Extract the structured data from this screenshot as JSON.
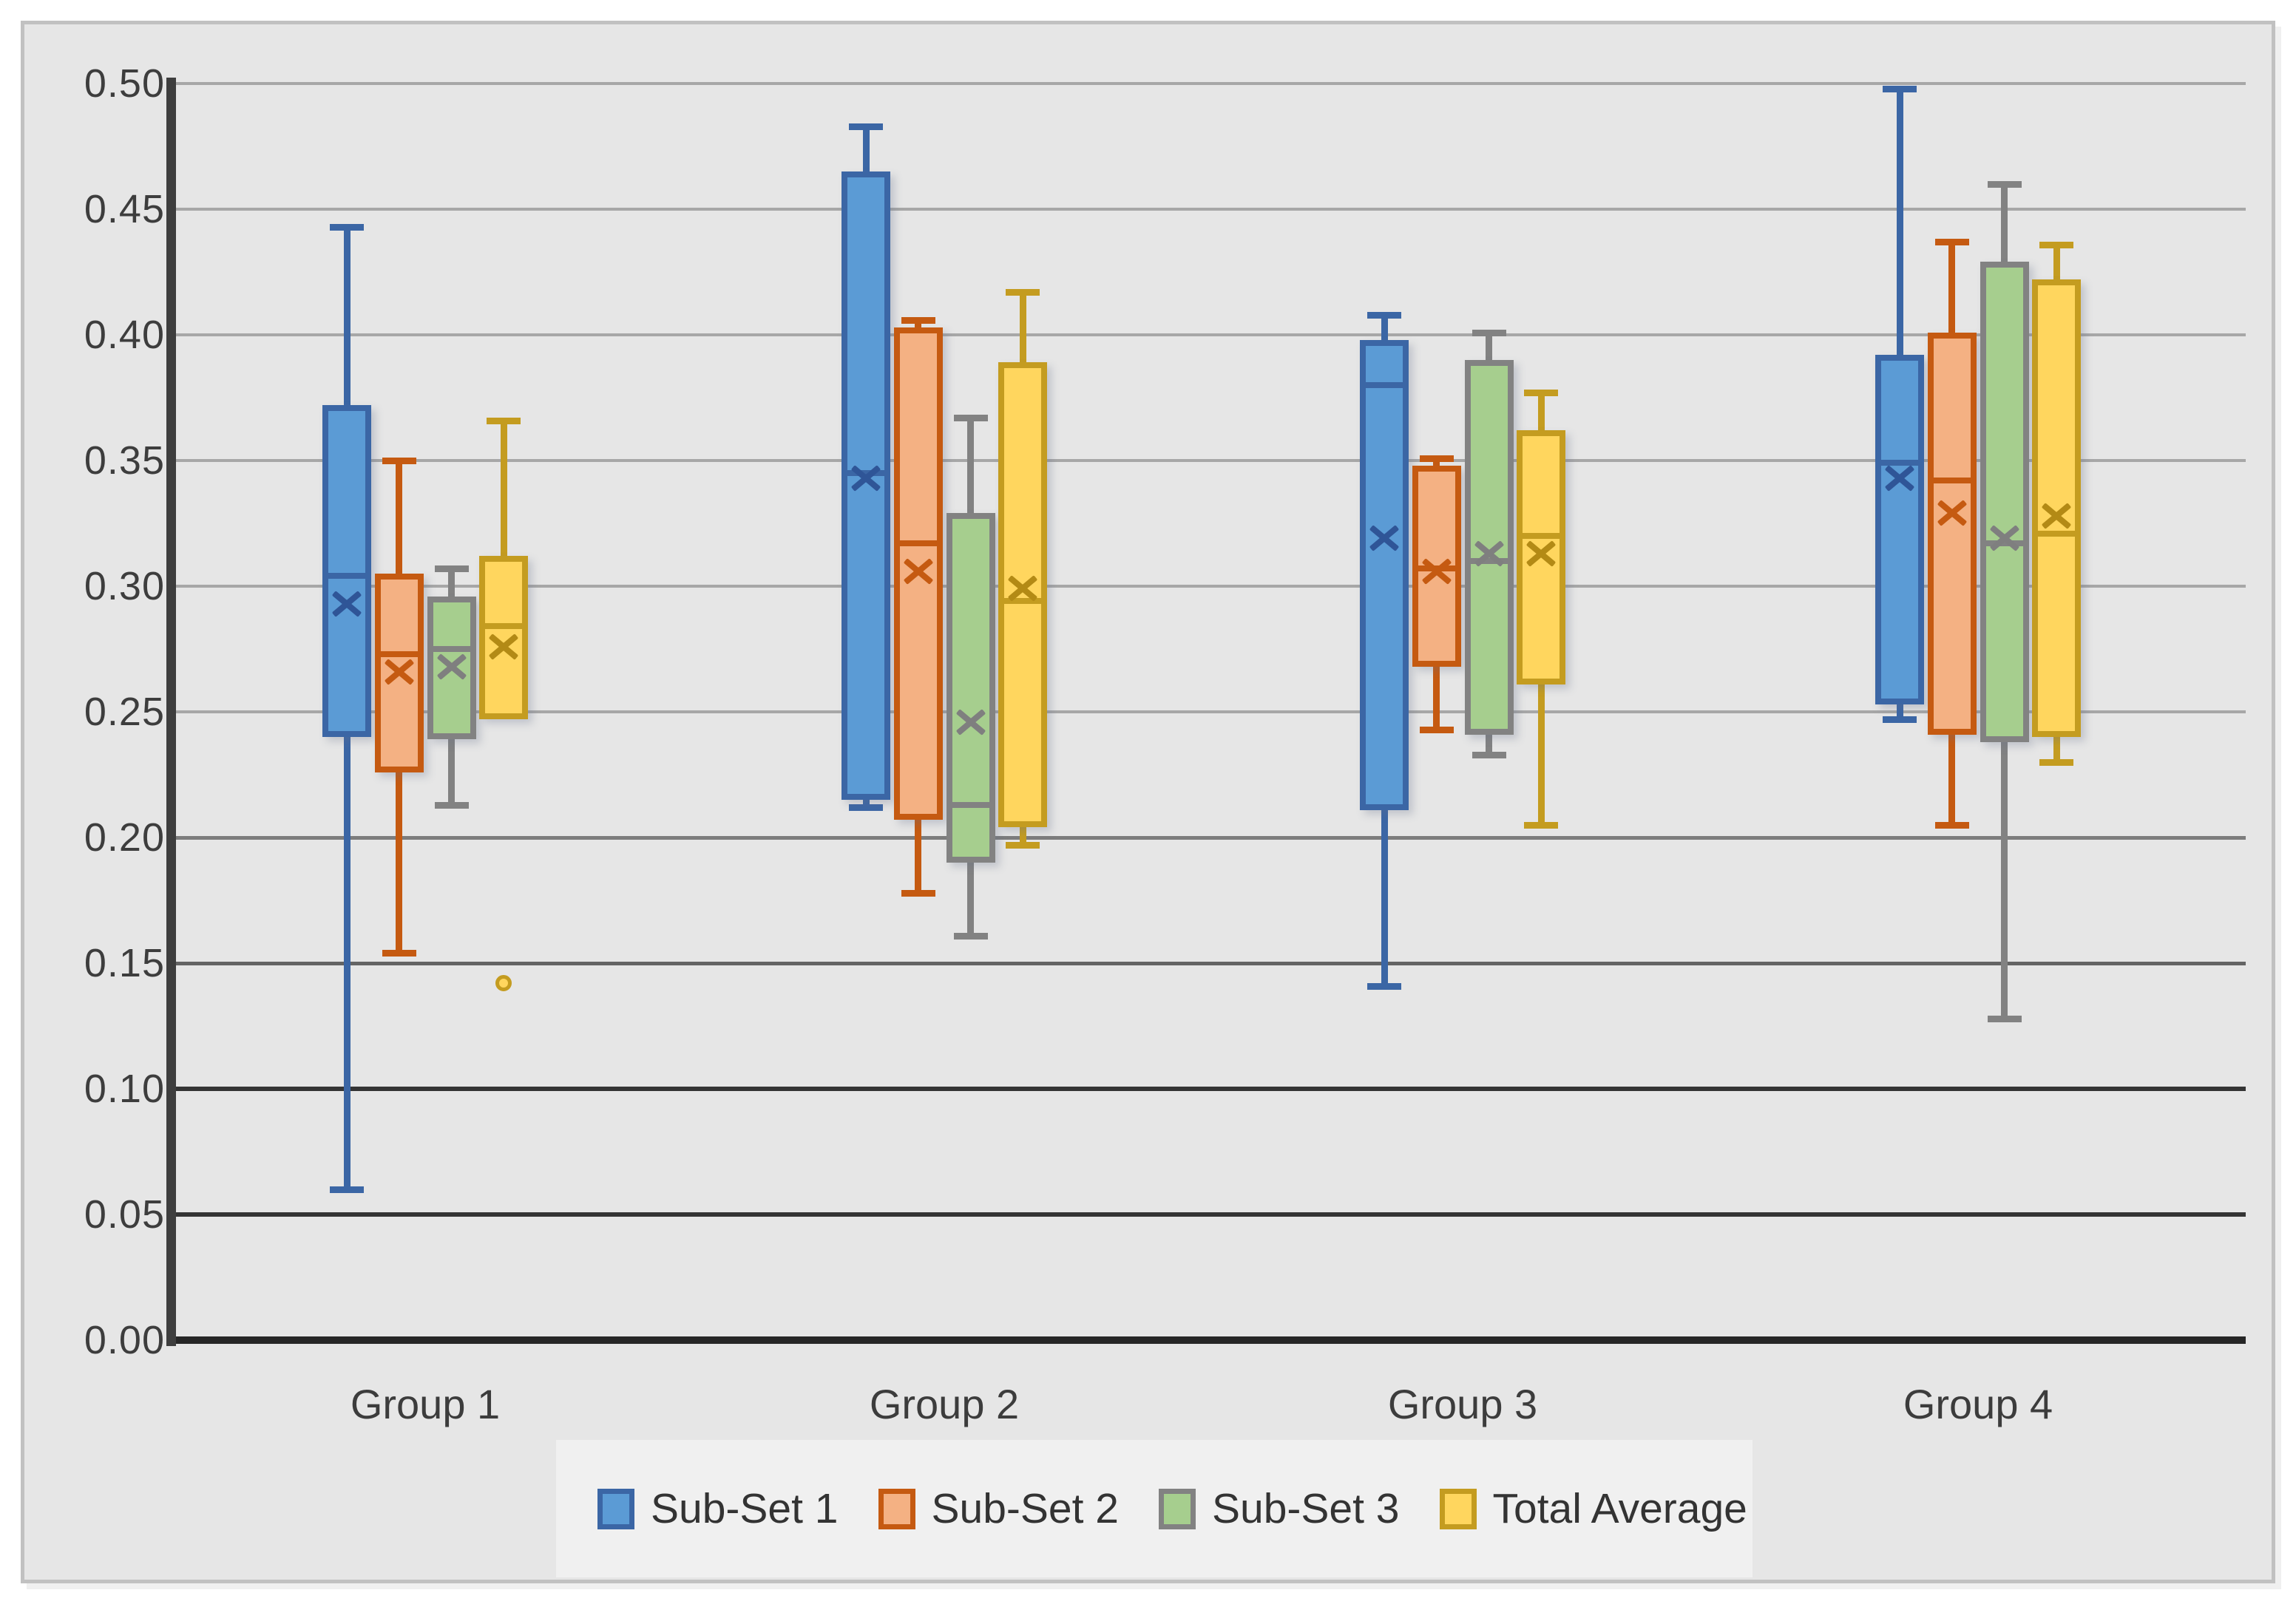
{
  "chart_data": {
    "type": "boxplot",
    "title": "",
    "categories": [
      "Group 1",
      "Group 2",
      "Group 3",
      "Group 4"
    ],
    "y_axis": {
      "min": 0.0,
      "max": 0.5,
      "step": 0.05,
      "ticks": [
        {
          "value": 0.5,
          "label": "0.50"
        },
        {
          "value": 0.45,
          "label": "0.45"
        },
        {
          "value": 0.4,
          "label": "0.40"
        },
        {
          "value": 0.35,
          "label": "0.35"
        },
        {
          "value": 0.3,
          "label": "0.30"
        },
        {
          "value": 0.25,
          "label": "0.25"
        },
        {
          "value": 0.2,
          "label": "0.20"
        },
        {
          "value": 0.15,
          "label": "0.15"
        },
        {
          "value": 0.1,
          "label": "0.10"
        },
        {
          "value": 0.05,
          "label": "0.05"
        },
        {
          "value": 0.0,
          "label": "0.00"
        }
      ]
    },
    "legend_position": "bottom",
    "grid": true,
    "series": [
      {
        "name": "Sub-Set 1",
        "fill": "#5b9bd5",
        "edge": "#3b66a5",
        "marker": "#2f5597",
        "boxes": [
          {
            "group": "Group 1",
            "whisker_low": 0.06,
            "q1": 0.24,
            "median": 0.304,
            "mean": 0.293,
            "q3": 0.372,
            "whisker_high": 0.443,
            "outliers": []
          },
          {
            "group": "Group 2",
            "whisker_low": 0.212,
            "q1": 0.215,
            "median": 0.345,
            "mean": 0.343,
            "q3": 0.465,
            "whisker_high": 0.483,
            "outliers": []
          },
          {
            "group": "Group 3",
            "whisker_low": 0.141,
            "q1": 0.211,
            "median": 0.38,
            "mean": 0.319,
            "q3": 0.398,
            "whisker_high": 0.408,
            "outliers": []
          },
          {
            "group": "Group 4",
            "whisker_low": 0.247,
            "q1": 0.253,
            "median": 0.349,
            "mean": 0.343,
            "q3": 0.392,
            "whisker_high": 0.498,
            "outliers": []
          }
        ]
      },
      {
        "name": "Sub-Set 2",
        "fill": "#f4b183",
        "edge": "#c55a11",
        "marker": "#c55a11",
        "boxes": [
          {
            "group": "Group 1",
            "whisker_low": 0.154,
            "q1": 0.226,
            "median": 0.273,
            "mean": 0.266,
            "q3": 0.305,
            "whisker_high": 0.35,
            "outliers": []
          },
          {
            "group": "Group 2",
            "whisker_low": 0.178,
            "q1": 0.207,
            "median": 0.317,
            "mean": 0.306,
            "q3": 0.403,
            "whisker_high": 0.406,
            "outliers": []
          },
          {
            "group": "Group 3",
            "whisker_low": 0.243,
            "q1": 0.268,
            "median": 0.307,
            "mean": 0.306,
            "q3": 0.348,
            "whisker_high": 0.351,
            "outliers": []
          },
          {
            "group": "Group 4",
            "whisker_low": 0.205,
            "q1": 0.241,
            "median": 0.342,
            "mean": 0.329,
            "q3": 0.401,
            "whisker_high": 0.437,
            "outliers": []
          }
        ]
      },
      {
        "name": "Sub-Set 3",
        "fill": "#a6ce8e",
        "edge": "#828282",
        "marker": "#7f7f7f",
        "boxes": [
          {
            "group": "Group 1",
            "whisker_low": 0.213,
            "q1": 0.239,
            "median": 0.275,
            "mean": 0.268,
            "q3": 0.296,
            "whisker_high": 0.307,
            "outliers": []
          },
          {
            "group": "Group 2",
            "whisker_low": 0.161,
            "q1": 0.19,
            "median": 0.213,
            "mean": 0.246,
            "q3": 0.329,
            "whisker_high": 0.367,
            "outliers": []
          },
          {
            "group": "Group 3",
            "whisker_low": 0.233,
            "q1": 0.241,
            "median": 0.31,
            "mean": 0.313,
            "q3": 0.39,
            "whisker_high": 0.401,
            "outliers": []
          },
          {
            "group": "Group 4",
            "whisker_low": 0.128,
            "q1": 0.238,
            "median": 0.317,
            "mean": 0.319,
            "q3": 0.429,
            "whisker_high": 0.46,
            "outliers": []
          }
        ]
      },
      {
        "name": "Total Average",
        "fill": "#ffd65e",
        "edge": "#c49c20",
        "marker": "#b38a15",
        "boxes": [
          {
            "group": "Group 1",
            "whisker_low": null,
            "q1": 0.247,
            "median": 0.284,
            "mean": 0.276,
            "q3": 0.312,
            "whisker_high": 0.366,
            "outliers": [
              0.142
            ]
          },
          {
            "group": "Group 2",
            "whisker_low": 0.197,
            "q1": 0.204,
            "median": 0.294,
            "mean": 0.299,
            "q3": 0.389,
            "whisker_high": 0.417,
            "outliers": []
          },
          {
            "group": "Group 3",
            "whisker_low": 0.205,
            "q1": 0.261,
            "median": 0.32,
            "mean": 0.313,
            "q3": 0.362,
            "whisker_high": 0.377,
            "outliers": []
          },
          {
            "group": "Group 4",
            "whisker_low": 0.23,
            "q1": 0.24,
            "median": 0.321,
            "mean": 0.328,
            "q3": 0.422,
            "whisker_high": 0.436,
            "outliers": []
          }
        ]
      }
    ]
  }
}
